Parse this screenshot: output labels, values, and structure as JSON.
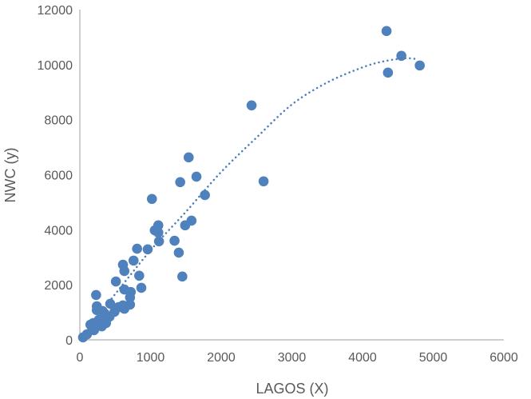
{
  "chart_data": {
    "type": "scatter",
    "title": "",
    "xlabel": "LAGOS (X)",
    "ylabel": "NWC (y)",
    "xlim": [
      0,
      6000
    ],
    "ylim": [
      0,
      12000
    ],
    "xticks": [
      0,
      1000,
      2000,
      3000,
      4000,
      5000,
      6000
    ],
    "yticks": [
      0,
      2000,
      4000,
      6000,
      8000,
      10000,
      12000
    ],
    "grid": false,
    "legend": "none",
    "colors": {
      "marker": "#4f81bd",
      "trend": "#4a7ebb",
      "axis": "#bfbfbf",
      "text": "#595959"
    },
    "series": [
      {
        "name": "NWC",
        "points": [
          [
            4340,
            11220
          ],
          [
            4550,
            10320
          ],
          [
            4360,
            9710
          ],
          [
            4810,
            9970
          ],
          [
            2430,
            8520
          ],
          [
            2600,
            5760
          ],
          [
            1540,
            6630
          ],
          [
            1650,
            5930
          ],
          [
            1420,
            5730
          ],
          [
            1770,
            5260
          ],
          [
            1020,
            5120
          ],
          [
            1580,
            4330
          ],
          [
            1110,
            4160
          ],
          [
            1490,
            4160
          ],
          [
            1060,
            3980
          ],
          [
            1110,
            3900
          ],
          [
            1120,
            3580
          ],
          [
            1340,
            3600
          ],
          [
            1400,
            3170
          ],
          [
            960,
            3290
          ],
          [
            810,
            3310
          ],
          [
            760,
            2880
          ],
          [
            610,
            2730
          ],
          [
            1450,
            2300
          ],
          [
            630,
            2500
          ],
          [
            840,
            2330
          ],
          [
            870,
            1890
          ],
          [
            510,
            2120
          ],
          [
            230,
            1630
          ],
          [
            630,
            1830
          ],
          [
            720,
            1740
          ],
          [
            710,
            1540
          ],
          [
            710,
            1280
          ],
          [
            610,
            1250
          ],
          [
            550,
            1190
          ],
          [
            630,
            1130
          ],
          [
            240,
            1220
          ],
          [
            240,
            1080
          ],
          [
            430,
            1310
          ],
          [
            320,
            1050
          ],
          [
            350,
            960
          ],
          [
            490,
            1020
          ],
          [
            420,
            840
          ],
          [
            340,
            780
          ],
          [
            270,
            730
          ],
          [
            190,
            610
          ],
          [
            290,
            550
          ],
          [
            170,
            470
          ],
          [
            310,
            490
          ],
          [
            200,
            350
          ],
          [
            100,
            200
          ],
          [
            45,
            90
          ],
          [
            370,
            610
          ],
          [
            150,
            550
          ]
        ]
      }
    ],
    "trendline": {
      "type": "polynomial",
      "style": "dotted",
      "points": [
        [
          450,
          1500
        ],
        [
          1000,
          3250
        ],
        [
          1500,
          4650
        ],
        [
          2000,
          6100
        ],
        [
          2500,
          7350
        ],
        [
          3000,
          8550
        ],
        [
          3500,
          9350
        ],
        [
          4000,
          9900
        ],
        [
          4300,
          10120
        ],
        [
          4600,
          10230
        ],
        [
          4780,
          10200
        ]
      ]
    }
  }
}
